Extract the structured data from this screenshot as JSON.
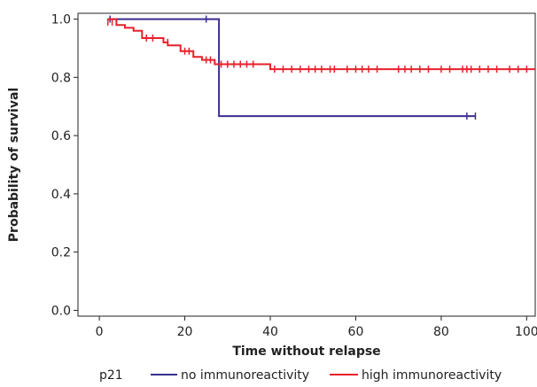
{
  "chart_data": {
    "type": "line",
    "step": true,
    "xlabel": "Time without relapse",
    "ylabel": "Probability of survival",
    "xlim": [
      -5,
      102
    ],
    "ylim": [
      -0.02,
      1.02
    ],
    "xticks": [
      0,
      20,
      40,
      60,
      80,
      100
    ],
    "yticks": [
      0.0,
      0.2,
      0.4,
      0.6,
      0.8,
      1.0
    ],
    "xtick_labels": [
      "0",
      "20",
      "40",
      "60",
      "80",
      "100"
    ],
    "ytick_labels": [
      "0.0",
      "0.2",
      "0.4",
      "0.6",
      "0.8",
      "1.0"
    ],
    "grid": false,
    "legend_position": "bottom",
    "legend_title": "p21",
    "series": [
      {
        "name": "no immunoreactivity",
        "color": "#3a2f8f",
        "steps": [
          [
            2,
            1.0
          ],
          [
            28,
            1.0
          ],
          [
            28,
            0.667
          ],
          [
            88,
            0.667
          ]
        ],
        "censored": [
          [
            2.5,
            1.0
          ],
          [
            25,
            1.0
          ],
          [
            86,
            0.667
          ],
          [
            88,
            0.667
          ]
        ]
      },
      {
        "name": "high immunoreactivity",
        "color": "#e8202a",
        "steps": [
          [
            2,
            1.0
          ],
          [
            4,
            1.0
          ],
          [
            4,
            0.98
          ],
          [
            6,
            0.98
          ],
          [
            6,
            0.97
          ],
          [
            8,
            0.97
          ],
          [
            8,
            0.96
          ],
          [
            10,
            0.96
          ],
          [
            10,
            0.935
          ],
          [
            15,
            0.935
          ],
          [
            15,
            0.92
          ],
          [
            16,
            0.92
          ],
          [
            16,
            0.91
          ],
          [
            19,
            0.91
          ],
          [
            19,
            0.89
          ],
          [
            22,
            0.89
          ],
          [
            22,
            0.87
          ],
          [
            24,
            0.87
          ],
          [
            24,
            0.86
          ],
          [
            27,
            0.86
          ],
          [
            27,
            0.845
          ],
          [
            40,
            0.845
          ],
          [
            40,
            0.828
          ],
          [
            102,
            0.828
          ]
        ],
        "censored": [
          [
            2,
            0.99
          ],
          [
            3,
            0.99
          ],
          [
            11,
            0.935
          ],
          [
            12.5,
            0.935
          ],
          [
            16,
            0.92
          ],
          [
            20,
            0.89
          ],
          [
            21,
            0.89
          ],
          [
            25,
            0.86
          ],
          [
            26,
            0.86
          ],
          [
            28.5,
            0.845
          ],
          [
            30,
            0.845
          ],
          [
            31.5,
            0.845
          ],
          [
            33,
            0.845
          ],
          [
            34.5,
            0.845
          ],
          [
            36,
            0.845
          ],
          [
            41,
            0.828
          ],
          [
            43,
            0.828
          ],
          [
            45,
            0.828
          ],
          [
            47,
            0.828
          ],
          [
            49,
            0.828
          ],
          [
            50.5,
            0.828
          ],
          [
            52,
            0.828
          ],
          [
            54,
            0.828
          ],
          [
            55,
            0.828
          ],
          [
            58,
            0.828
          ],
          [
            60,
            0.828
          ],
          [
            61.5,
            0.828
          ],
          [
            63,
            0.828
          ],
          [
            65,
            0.828
          ],
          [
            70,
            0.828
          ],
          [
            71.5,
            0.828
          ],
          [
            73,
            0.828
          ],
          [
            75,
            0.828
          ],
          [
            77,
            0.828
          ],
          [
            80,
            0.828
          ],
          [
            82,
            0.828
          ],
          [
            85,
            0.828
          ],
          [
            86,
            0.828
          ],
          [
            87,
            0.828
          ],
          [
            89,
            0.828
          ],
          [
            91,
            0.828
          ],
          [
            93,
            0.828
          ],
          [
            96,
            0.828
          ],
          [
            98,
            0.828
          ],
          [
            100,
            0.828
          ]
        ]
      }
    ]
  }
}
